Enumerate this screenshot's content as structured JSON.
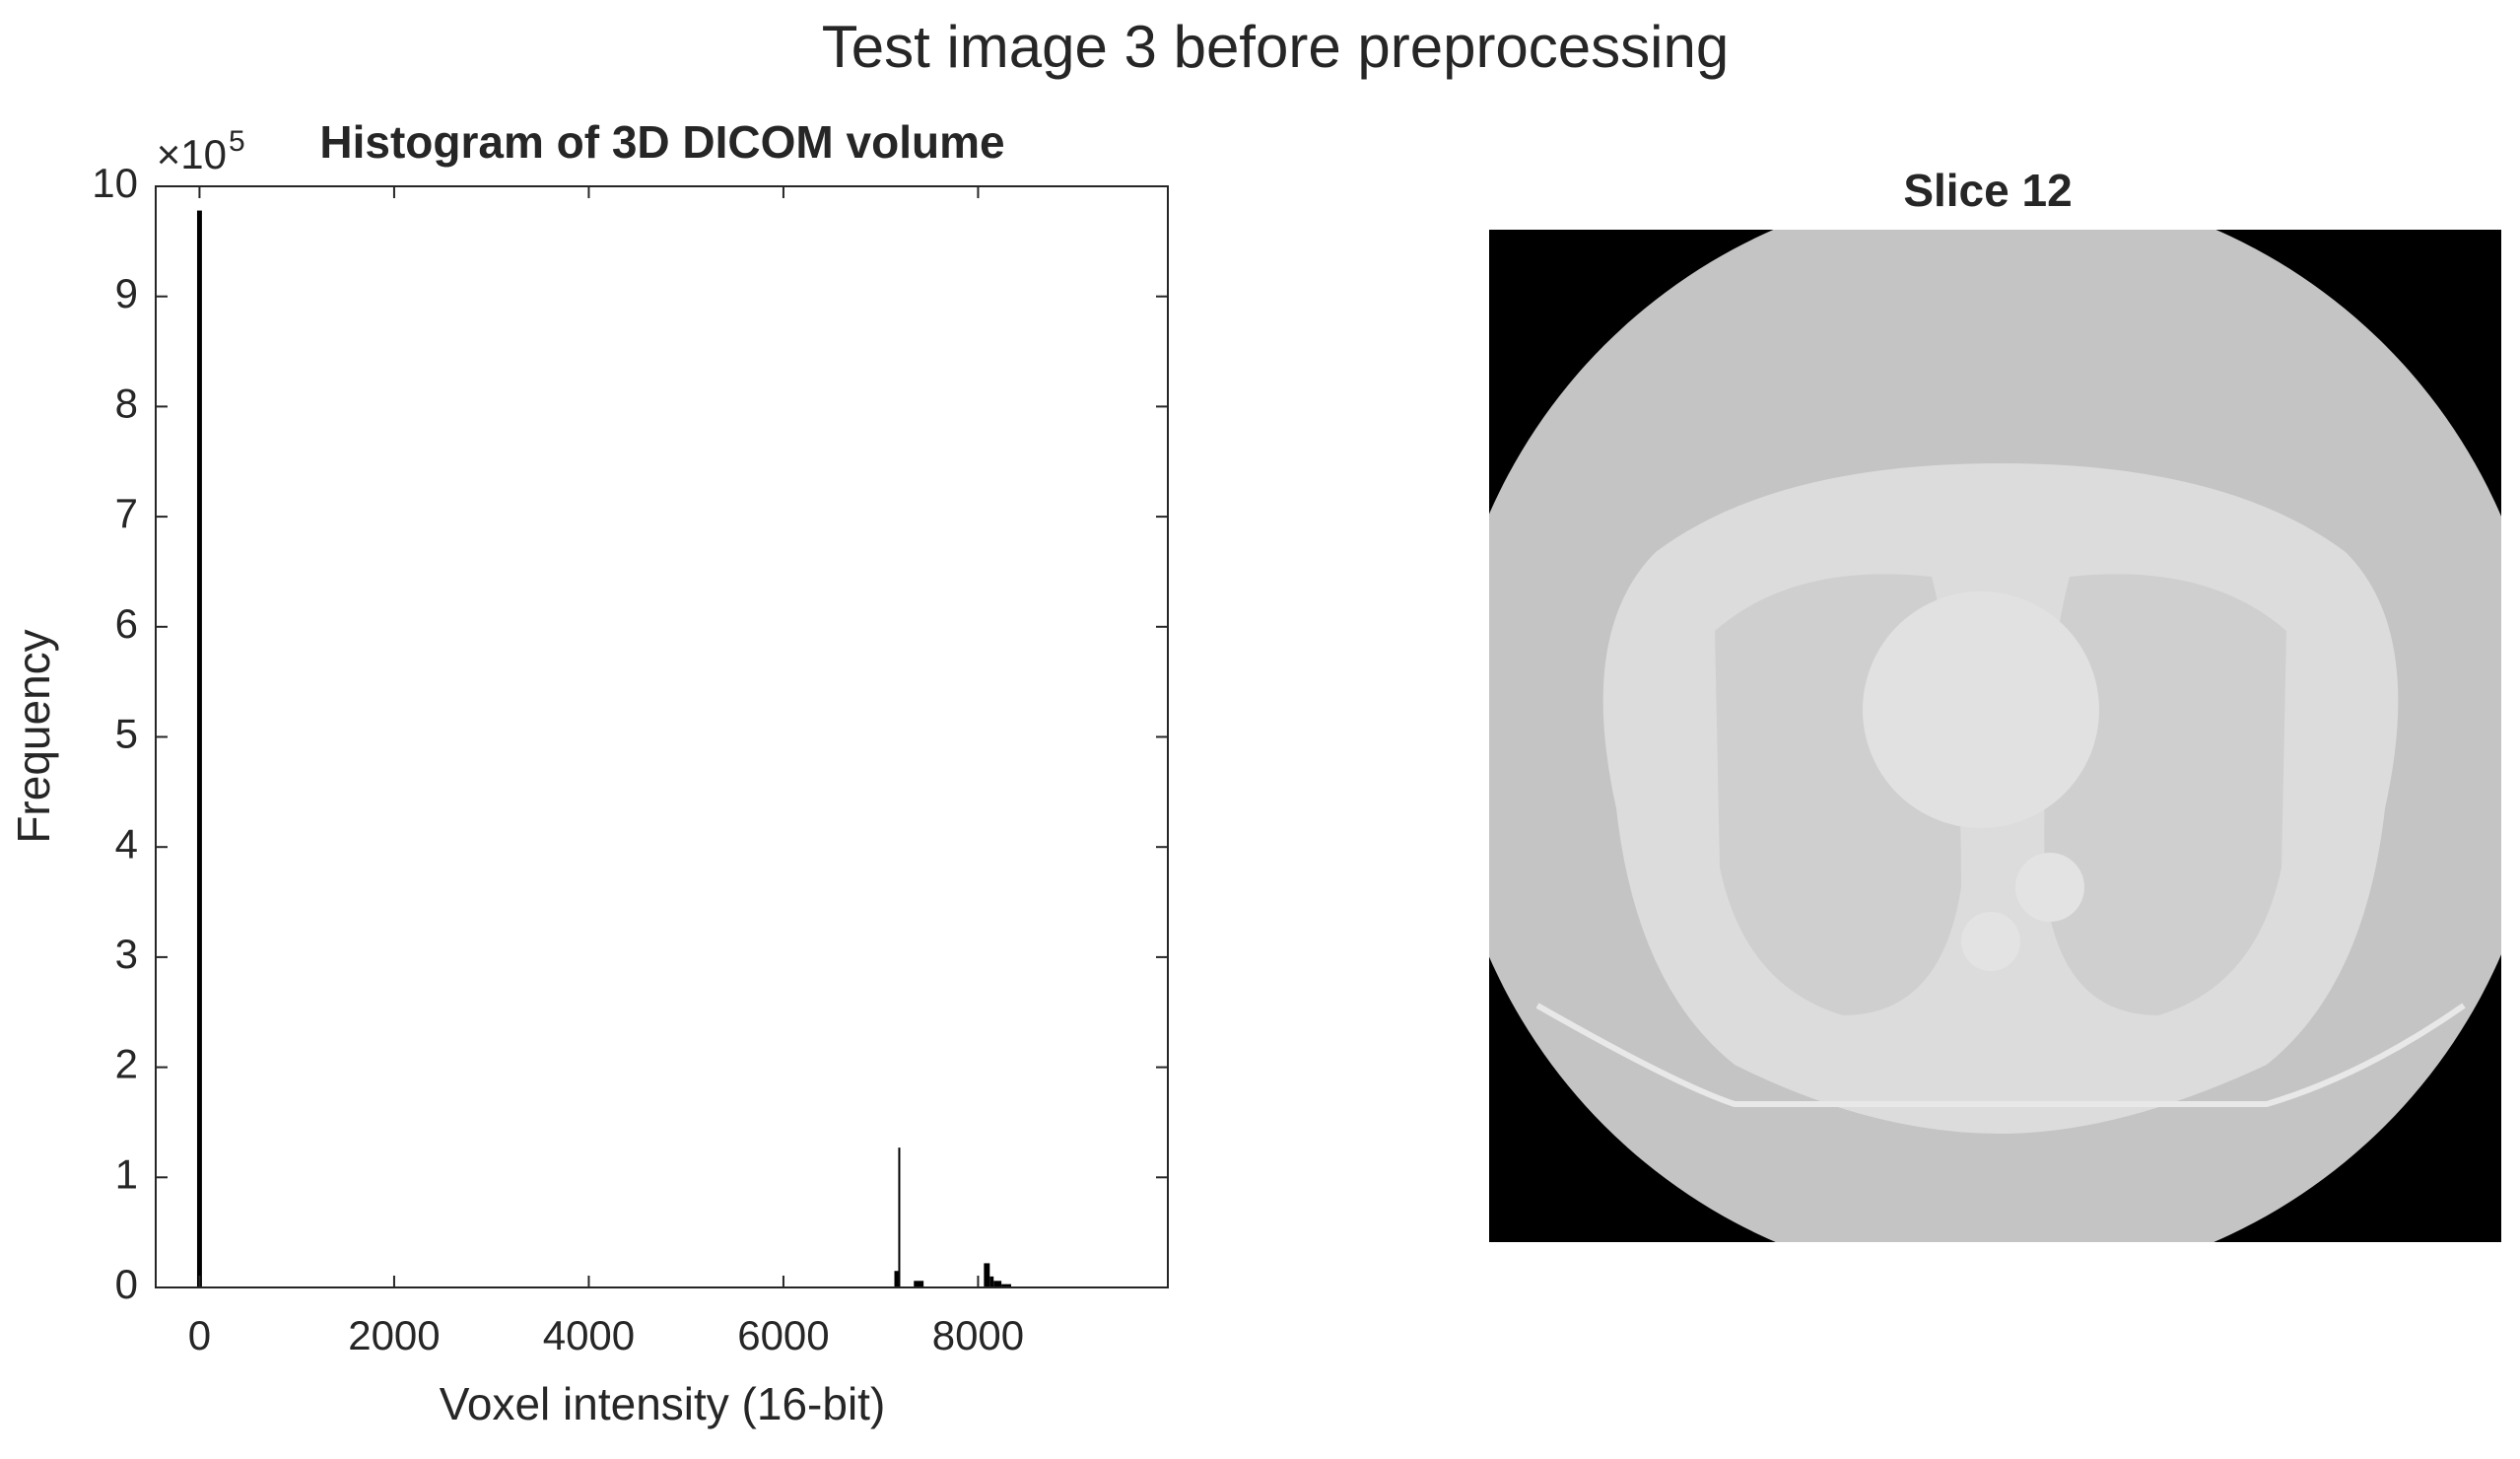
{
  "figure_title": "Test image 3 before preprocessing",
  "chart_data": {
    "type": "histogram",
    "title": "Histogram of 3D DICOM volume",
    "x_label": "Voxel intensity (16-bit)",
    "y_label": "Frequency",
    "y_multiplier": {
      "base": "×10",
      "exponent": "5"
    },
    "bins": [
      -25,
      25,
      7140,
      7180,
      7200,
      7340,
      7440,
      8060,
      8120,
      8160,
      8240,
      8340
    ],
    "values": [
      978000,
      0,
      15000,
      127000,
      0,
      6000,
      0,
      22000,
      10000,
      6000,
      3000
    ],
    "color": "#000000",
    "xlim": [
      -450,
      9950
    ],
    "xticks": [
      0,
      2000,
      4000,
      6000,
      8000
    ],
    "ylim": [
      0,
      1000000
    ],
    "yticks": [
      {
        "value": 0,
        "label": "0"
      },
      {
        "value": 100000,
        "label": "1"
      },
      {
        "value": 200000,
        "label": "2"
      },
      {
        "value": 300000,
        "label": "3"
      },
      {
        "value": 400000,
        "label": "4"
      },
      {
        "value": 500000,
        "label": "5"
      },
      {
        "value": 600000,
        "label": "6"
      },
      {
        "value": 700000,
        "label": "7"
      },
      {
        "value": 800000,
        "label": "8"
      },
      {
        "value": 900000,
        "label": "9"
      },
      {
        "value": 1000000,
        "label": "10"
      }
    ],
    "grid": false
  },
  "image_panel": {
    "title": "Slice 12"
  }
}
